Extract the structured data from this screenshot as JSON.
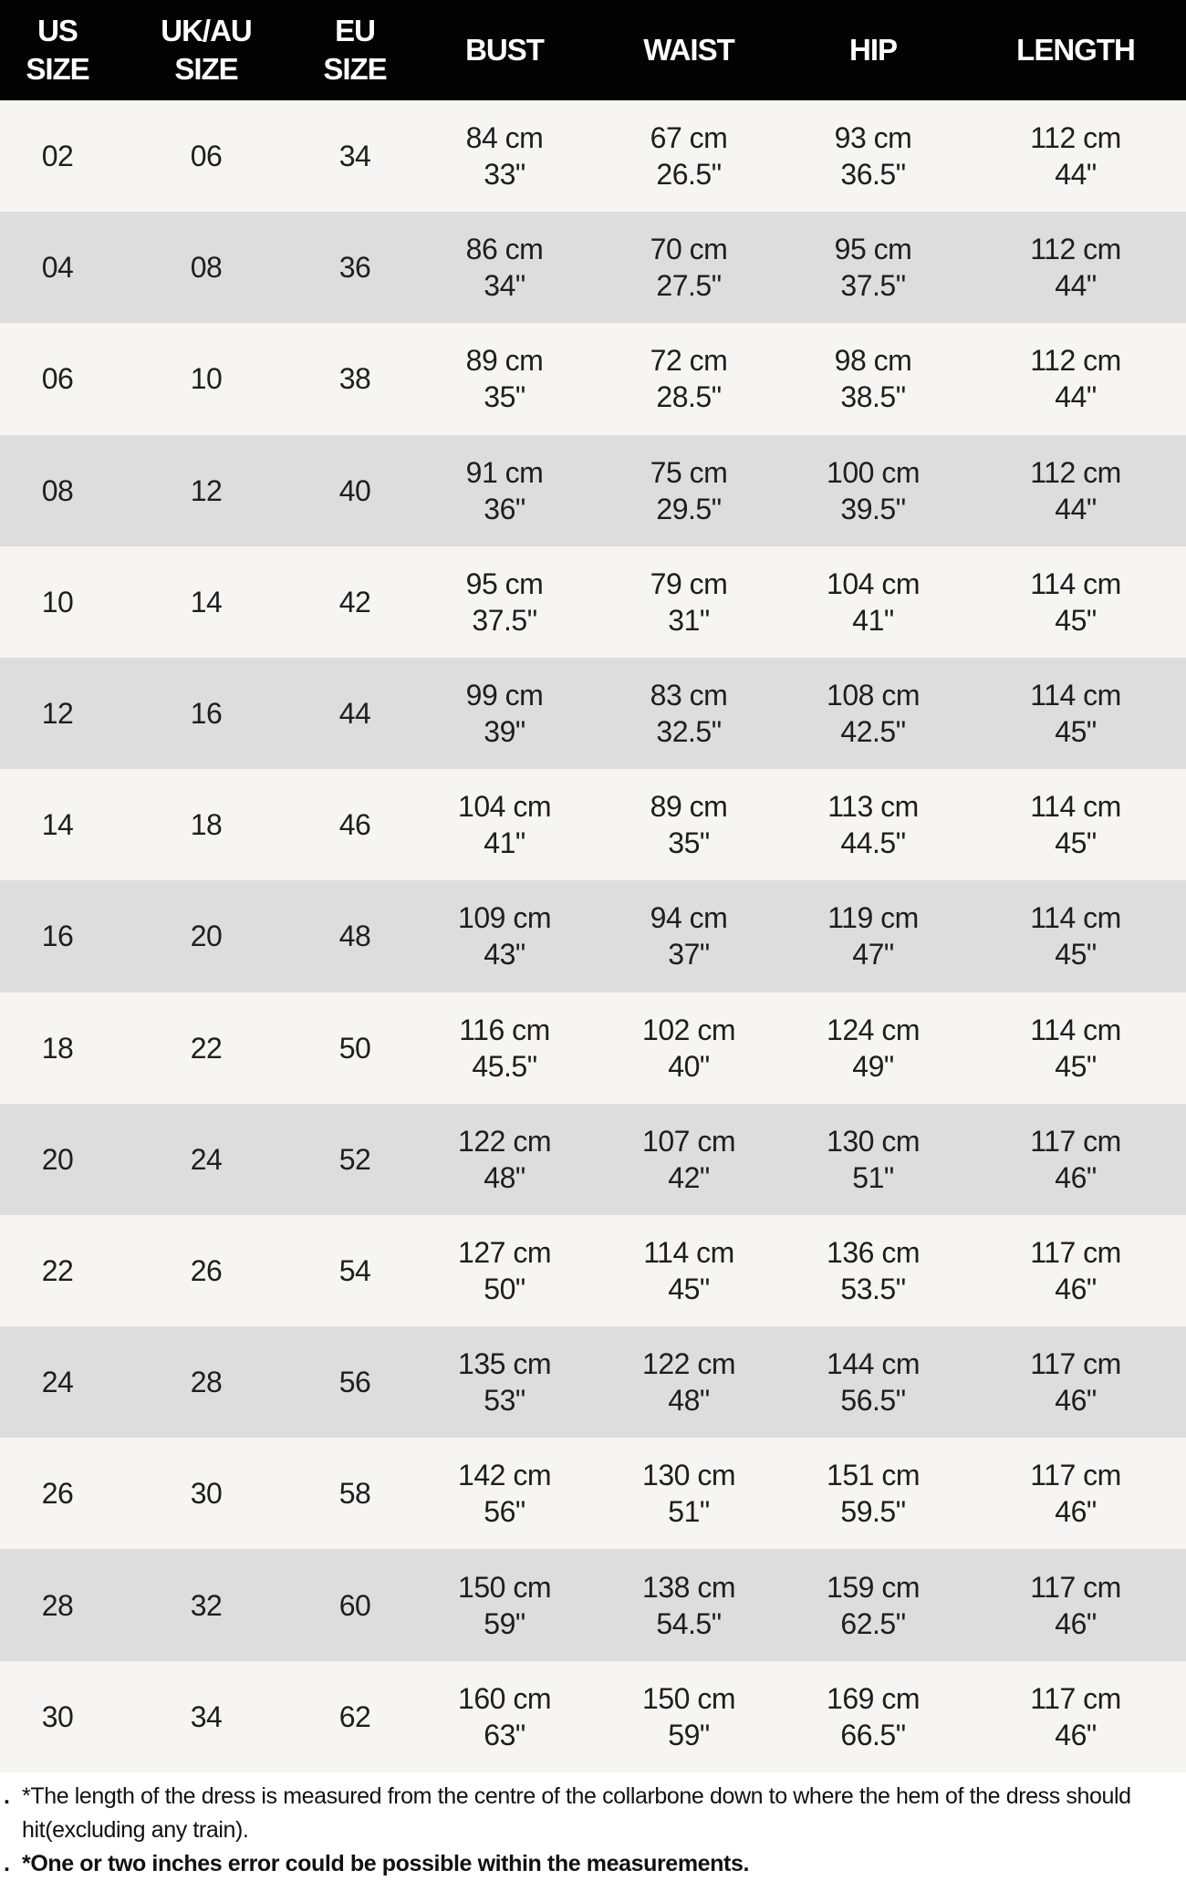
{
  "headers": [
    [
      "US",
      "SIZE"
    ],
    [
      "UK/AU",
      "SIZE"
    ],
    [
      "EU",
      "SIZE"
    ],
    [
      "BUST"
    ],
    [
      "WAIST"
    ],
    [
      "HIP"
    ],
    [
      "LENGTH"
    ]
  ],
  "rows": [
    {
      "us": "02",
      "uk": "06",
      "eu": "34",
      "bust": [
        "84 cm",
        "33\""
      ],
      "waist": [
        "67 cm",
        "26.5\""
      ],
      "hip": [
        "93 cm",
        "36.5\""
      ],
      "length": [
        "112 cm",
        "44\""
      ]
    },
    {
      "us": "04",
      "uk": "08",
      "eu": "36",
      "bust": [
        "86 cm",
        "34\""
      ],
      "waist": [
        "70 cm",
        "27.5\""
      ],
      "hip": [
        "95 cm",
        "37.5\""
      ],
      "length": [
        "112 cm",
        "44\""
      ]
    },
    {
      "us": "06",
      "uk": "10",
      "eu": "38",
      "bust": [
        "89 cm",
        "35\""
      ],
      "waist": [
        "72 cm",
        "28.5\""
      ],
      "hip": [
        "98 cm",
        "38.5\""
      ],
      "length": [
        "112 cm",
        "44\""
      ]
    },
    {
      "us": "08",
      "uk": "12",
      "eu": "40",
      "bust": [
        "91 cm",
        "36\""
      ],
      "waist": [
        "75 cm",
        "29.5\""
      ],
      "hip": [
        "100 cm",
        "39.5\""
      ],
      "length": [
        "112 cm",
        "44\""
      ]
    },
    {
      "us": "10",
      "uk": "14",
      "eu": "42",
      "bust": [
        "95 cm",
        "37.5\""
      ],
      "waist": [
        "79 cm",
        "31\""
      ],
      "hip": [
        "104 cm",
        "41\""
      ],
      "length": [
        "114 cm",
        "45\""
      ]
    },
    {
      "us": "12",
      "uk": "16",
      "eu": "44",
      "bust": [
        "99 cm",
        "39\""
      ],
      "waist": [
        "83 cm",
        "32.5\""
      ],
      "hip": [
        "108 cm",
        "42.5\""
      ],
      "length": [
        "114 cm",
        "45\""
      ]
    },
    {
      "us": "14",
      "uk": "18",
      "eu": "46",
      "bust": [
        "104 cm",
        "41\""
      ],
      "waist": [
        "89 cm",
        "35\""
      ],
      "hip": [
        "113 cm",
        "44.5\""
      ],
      "length": [
        "114 cm",
        "45\""
      ]
    },
    {
      "us": "16",
      "uk": "20",
      "eu": "48",
      "bust": [
        "109 cm",
        "43\""
      ],
      "waist": [
        "94 cm",
        "37\""
      ],
      "hip": [
        "119 cm",
        "47\""
      ],
      "length": [
        "114 cm",
        "45\""
      ]
    },
    {
      "us": "18",
      "uk": "22",
      "eu": "50",
      "bust": [
        "116 cm",
        "45.5\""
      ],
      "waist": [
        "102 cm",
        "40\""
      ],
      "hip": [
        "124 cm",
        "49\""
      ],
      "length": [
        "114 cm",
        "45\""
      ]
    },
    {
      "us": "20",
      "uk": "24",
      "eu": "52",
      "bust": [
        "122 cm",
        "48\""
      ],
      "waist": [
        "107 cm",
        "42\""
      ],
      "hip": [
        "130 cm",
        "51\""
      ],
      "length": [
        "117 cm",
        "46\""
      ]
    },
    {
      "us": "22",
      "uk": "26",
      "eu": "54",
      "bust": [
        "127 cm",
        "50\""
      ],
      "waist": [
        "114 cm",
        "45\""
      ],
      "hip": [
        "136 cm",
        "53.5\""
      ],
      "length": [
        "117 cm",
        "46\""
      ]
    },
    {
      "us": "24",
      "uk": "28",
      "eu": "56",
      "bust": [
        "135 cm",
        "53\""
      ],
      "waist": [
        "122 cm",
        "48\""
      ],
      "hip": [
        "144 cm",
        "56.5\""
      ],
      "length": [
        "117 cm",
        "46\""
      ]
    },
    {
      "us": "26",
      "uk": "30",
      "eu": "58",
      "bust": [
        "142 cm",
        "56\""
      ],
      "waist": [
        "130 cm",
        "51\""
      ],
      "hip": [
        "151 cm",
        "59.5\""
      ],
      "length": [
        "117 cm",
        "46\""
      ]
    },
    {
      "us": "28",
      "uk": "32",
      "eu": "60",
      "bust": [
        "150 cm",
        "59\""
      ],
      "waist": [
        "138 cm",
        "54.5\""
      ],
      "hip": [
        "159 cm",
        "62.5\""
      ],
      "length": [
        "117 cm",
        "46\""
      ]
    },
    {
      "us": "30",
      "uk": "34",
      "eu": "62",
      "bust": [
        "160 cm",
        "63\""
      ],
      "waist": [
        "150 cm",
        "59\""
      ],
      "hip": [
        "169 cm",
        "66.5\""
      ],
      "length": [
        "117 cm",
        "46\""
      ]
    }
  ],
  "notes": {
    "bullet": ".",
    "note1": "*The length of the dress is measured from the centre of the collarbone down to where the hem of the dress should hit(excluding any train).",
    "note2": "*One or two inches error could be possible within the measurements."
  },
  "colors": {
    "header_bg": "#030303",
    "row_odd": "#f6f5f3",
    "row_even": "#dcdddc"
  }
}
